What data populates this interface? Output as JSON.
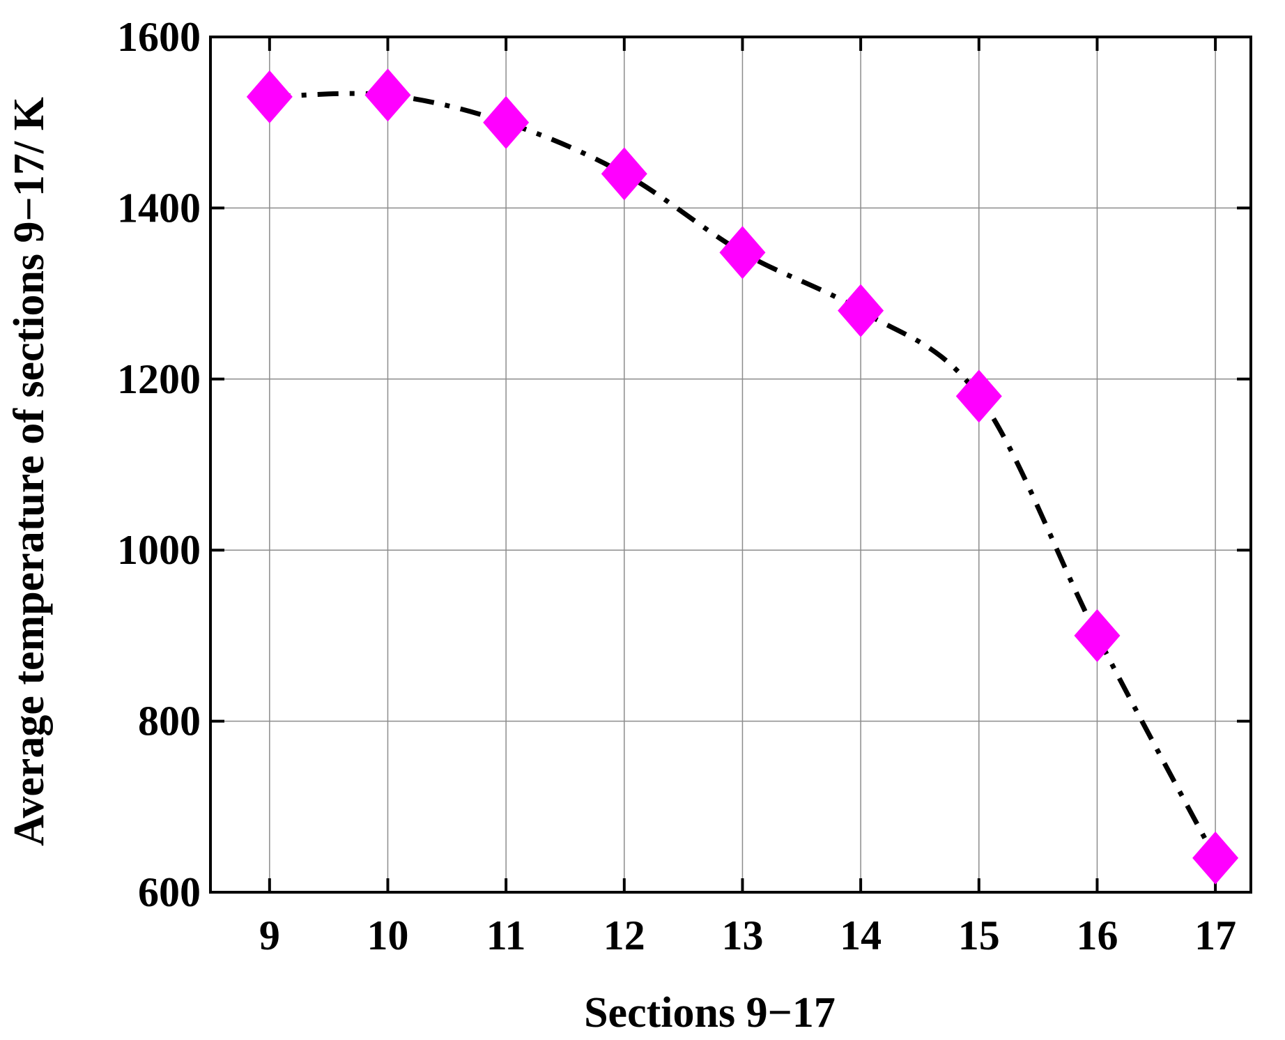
{
  "chart_data": {
    "type": "line",
    "title": "",
    "xlabel": "Sections 9−17",
    "ylabel": "Average temperature of sections 9−17/ K",
    "x": [
      9,
      10,
      11,
      12,
      13,
      14,
      15,
      16,
      17
    ],
    "x_tick_labels": [
      "9",
      "10",
      "11",
      "12",
      "13",
      "14",
      "15",
      "16",
      "17"
    ],
    "xlim": [
      8.5,
      17.3
    ],
    "ylim": [
      600,
      1600
    ],
    "y_ticks": [
      600,
      800,
      1000,
      1200,
      1400,
      1600
    ],
    "y_tick_labels": [
      "600",
      "800",
      "1000",
      "1200",
      "1400",
      "1600"
    ],
    "grid": true,
    "series": [
      {
        "values": [
          1530,
          1532,
          1500,
          1440,
          1348,
          1280,
          1180,
          900,
          640
        ],
        "marker": "diamond",
        "marker_color": "#ff00ff",
        "line_color": "#000000",
        "line_style": "dash-dot",
        "smoothed": true
      }
    ]
  }
}
